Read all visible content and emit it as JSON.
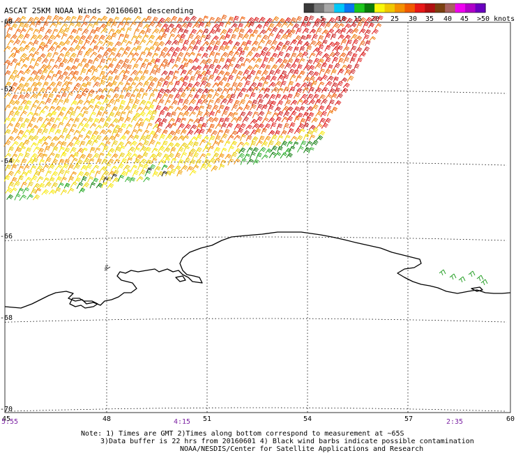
{
  "title": "ASCAT 25KM NOAA Winds 20160601 descending",
  "legend": {
    "colors": [
      "#3a3a3a",
      "#787878",
      "#a8a8a8",
      "#00c8f8",
      "#0a74f0",
      "#1cc81c",
      "#0a7a0a",
      "#f8f80a",
      "#f0c800",
      "#f49000",
      "#f05a00",
      "#e81818",
      "#b01010",
      "#7a4010",
      "#a86060",
      "#f000f0",
      "#b000c8",
      "#6a00c0"
    ],
    "labels": [
      "0",
      "5",
      "10",
      "15",
      "20",
      "25",
      "30",
      "35",
      "40",
      "45",
      ">50 knots"
    ],
    "unit": "knots"
  },
  "axes": {
    "lat_labels": [
      "-60",
      "-62",
      "-64",
      "-66",
      "-68",
      "-70"
    ],
    "lon_labels": [
      "45",
      "48",
      "51",
      "54",
      "57",
      "60"
    ]
  },
  "time_labels": [
    "5:55",
    "4:15",
    "2:35"
  ],
  "notes": [
    "Note: 1) Times are GMT 2)Times along bottom correspond to measurement at ~65S",
    "3)Data buffer is 22 hrs from 20160601 4) Black wind barbs indicate possible contamination",
    "NOAA/NESDIS/Center for Satellite Applications and Research"
  ],
  "map": {
    "projection": "polar",
    "lon_range": [
      45,
      60
    ],
    "lat_range": [
      -70,
      -60
    ],
    "swath_color_regions": [
      "orange/red winds 25-35 kt over northern swath",
      "yellow/green winds 15-25 kt near southern swath edge",
      "green barbs near coast at 58-59E"
    ]
  }
}
